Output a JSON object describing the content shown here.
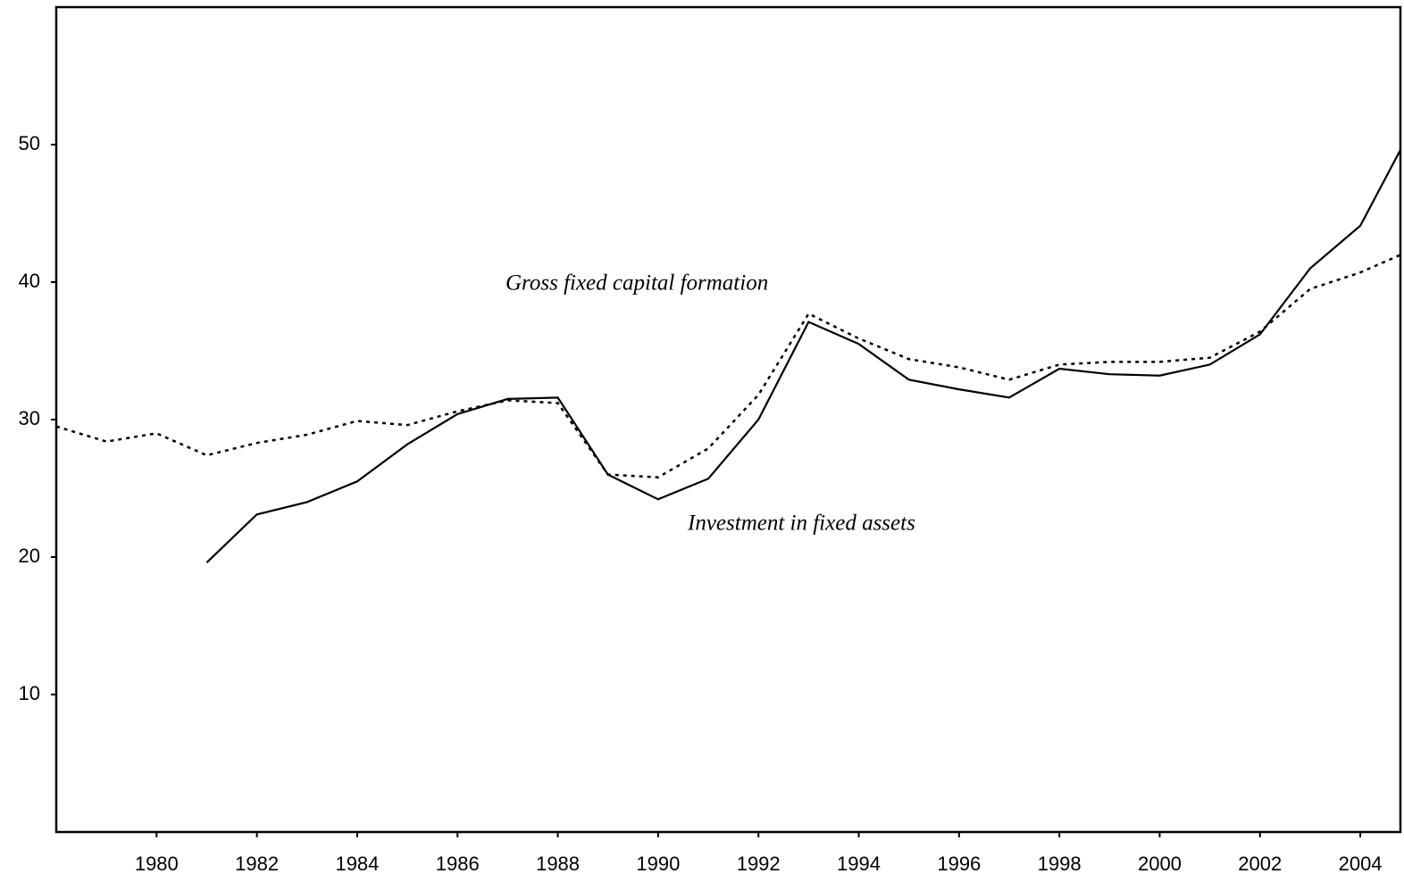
{
  "chart_data": {
    "type": "line",
    "x": [
      1978,
      1979,
      1980,
      1981,
      1982,
      1983,
      1984,
      1985,
      1986,
      1987,
      1988,
      1989,
      1990,
      1991,
      1992,
      1993,
      1994,
      1995,
      1996,
      1997,
      1998,
      1999,
      2000,
      2001,
      2002,
      2003,
      2004,
      2005
    ],
    "series": [
      {
        "name": "Gross fixed capital formation",
        "color": "#000000",
        "dash": "dotted",
        "values": [
          29.5,
          28.4,
          29.0,
          27.4,
          28.3,
          28.9,
          29.9,
          29.6,
          30.6,
          31.4,
          31.2,
          26.0,
          25.8,
          27.9,
          31.8,
          37.7,
          35.9,
          34.4,
          33.8,
          32.9,
          34.0,
          34.2,
          34.2,
          34.5,
          36.4,
          39.5,
          40.7,
          42.3
        ]
      },
      {
        "name": "Investment in fixed assets",
        "color": "#000000",
        "dash": "solid",
        "values": [
          null,
          null,
          null,
          19.6,
          23.1,
          24.0,
          25.5,
          28.2,
          30.4,
          31.5,
          31.6,
          26.0,
          24.2,
          25.7,
          30.0,
          37.1,
          35.5,
          32.9,
          32.2,
          31.6,
          33.7,
          33.3,
          33.2,
          34.0,
          36.2,
          41.0,
          44.1,
          51.0
        ]
      }
    ],
    "xlim": [
      1978,
      2004.8
    ],
    "xticks": [
      1980,
      1982,
      1984,
      1986,
      1988,
      1990,
      1992,
      1994,
      1996,
      1998,
      2000,
      2002,
      2004
    ],
    "ylim": [
      0,
      60
    ],
    "yticks": [
      10,
      20,
      30,
      40,
      50
    ],
    "grid": false
  }
}
